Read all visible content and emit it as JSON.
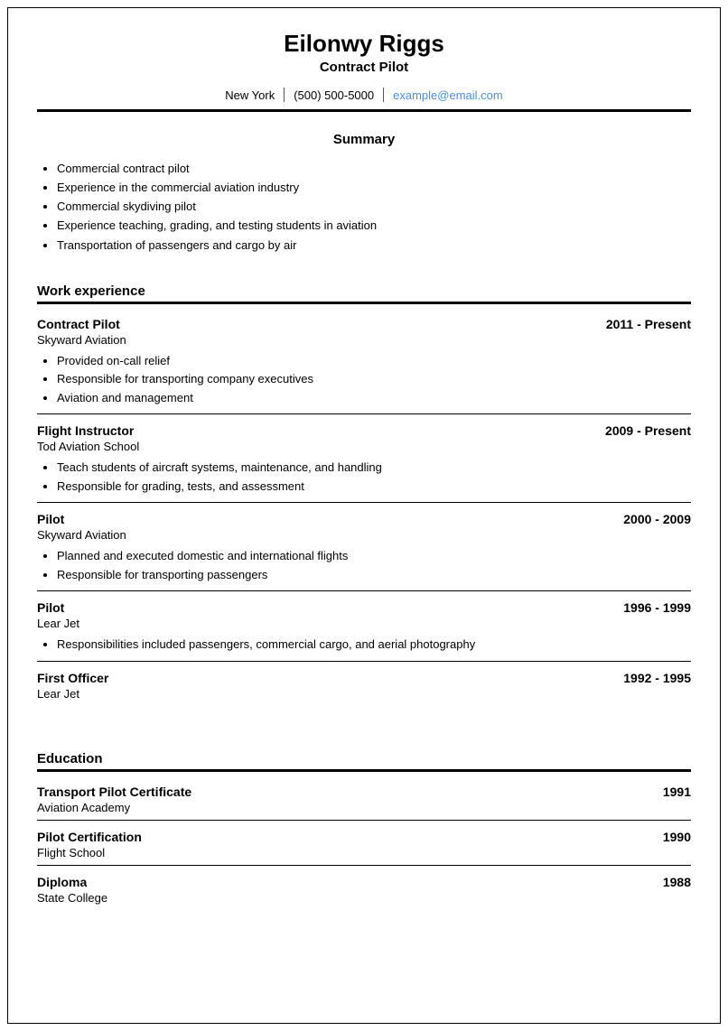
{
  "header": {
    "name": "Eilonwy Riggs",
    "title": "Contract Pilot",
    "location": "New York",
    "phone": "(500) 500-5000",
    "email": "example@email.com"
  },
  "summary": {
    "heading": "Summary",
    "items": [
      "Commercial contract pilot",
      "Experience in the commercial aviation industry",
      "Commercial skydiving pilot",
      "Experience teaching, grading, and testing students in aviation",
      "Transportation of passengers and cargo by air"
    ]
  },
  "work": {
    "heading": "Work experience",
    "entries": [
      {
        "role": "Contract Pilot",
        "dates": "2011 - Present",
        "org": "Skyward Aviation",
        "bullets": [
          "Provided on-call relief",
          "Responsible for transporting company executives",
          "Aviation and management"
        ]
      },
      {
        "role": "Flight Instructor",
        "dates": "2009 - Present",
        "org": "Tod Aviation School",
        "bullets": [
          "Teach students of aircraft systems, maintenance, and handling",
          "Responsible for grading, tests, and assessment"
        ]
      },
      {
        "role": "Pilot",
        "dates": "2000 - 2009",
        "org": "Skyward Aviation",
        "bullets": [
          "Planned and executed domestic and international flights",
          "Responsible for transporting passengers"
        ]
      },
      {
        "role": "Pilot",
        "dates": "1996 - 1999",
        "org": "Lear Jet",
        "bullets": [
          "Responsibilities included passengers, commercial cargo, and aerial photography"
        ]
      },
      {
        "role": "First Officer",
        "dates": "1992 - 1995",
        "org": "Lear Jet",
        "bullets": []
      }
    ]
  },
  "education": {
    "heading": "Education",
    "entries": [
      {
        "degree": "Transport Pilot Certificate",
        "year": "1991",
        "school": "Aviation Academy"
      },
      {
        "degree": "Pilot Certification",
        "year": "1990",
        "school": "Flight School"
      },
      {
        "degree": "Diploma",
        "year": "1988",
        "school": "State College"
      }
    ]
  },
  "colors": {
    "text": "#000000",
    "link": "#4a90d9",
    "background": "#ffffff",
    "rule": "#000000"
  }
}
